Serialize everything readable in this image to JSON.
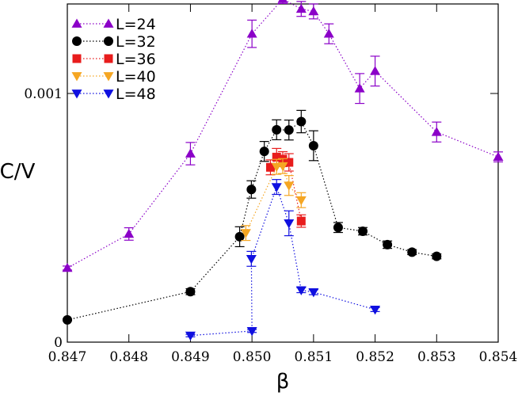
{
  "chart_data": {
    "type": "scatter",
    "title": "",
    "xlabel": "β",
    "ylabel": "C/V",
    "xlim": [
      0.847,
      0.854
    ],
    "ylim": [
      0,
      0.00136
    ],
    "x_ticks": [
      0.847,
      0.848,
      0.849,
      0.85,
      0.851,
      0.852,
      0.853,
      0.854
    ],
    "x_tick_labels": [
      "0.847",
      "0.848",
      "0.849",
      "0.850",
      "0.851",
      "0.852",
      "0.853",
      "0.854"
    ],
    "y_ticks": [
      0,
      0.001
    ],
    "y_tick_labels": [
      "0",
      "0.001"
    ],
    "legend_position": "top-left",
    "series": [
      {
        "name": "L=24",
        "color": "#8b00c8",
        "marker": "triangle-up",
        "x": [
          0.847,
          0.848,
          0.849,
          0.85,
          0.8505,
          0.8508,
          0.851,
          0.85125,
          0.85175,
          0.852,
          0.853,
          0.854
        ],
        "y": [
          0.000298,
          0.000435,
          0.000758,
          0.00124,
          0.00138,
          0.00134,
          0.00133,
          0.00124,
          0.00102,
          0.00109,
          0.000845,
          0.000745
        ],
        "err": [
          8e-06,
          2.5e-05,
          4.5e-05,
          5.5e-05,
          1.8e-05,
          3e-05,
          3e-05,
          4e-05,
          6e-05,
          6e-05,
          4e-05,
          2e-05
        ]
      },
      {
        "name": "L=32",
        "color": "#000000",
        "marker": "circle",
        "x": [
          0.847,
          0.849,
          0.8498,
          0.84999,
          0.8502,
          0.8504,
          0.8506,
          0.8508,
          0.851,
          0.8514,
          0.8518,
          0.8522,
          0.8526,
          0.853
        ],
        "y": [
          8.95e-05,
          0.000203,
          0.000424,
          0.000614,
          0.000767,
          0.000854,
          0.000853,
          0.000887,
          0.00079,
          0.000461,
          0.000446,
          0.000392,
          0.000362,
          0.000345
        ],
        "err": [
          3e-06,
          1.2e-05,
          4e-05,
          3.5e-05,
          4e-05,
          4e-05,
          4e-05,
          4.5e-05,
          6e-05,
          2e-05,
          1.5e-05,
          1.5e-05,
          1e-05,
          1e-05
        ]
      },
      {
        "name": "L=36",
        "color": "#e81c1c",
        "marker": "square",
        "x": [
          0.8503,
          0.8504,
          0.8505,
          0.8506,
          0.8508
        ],
        "y": [
          0.000703,
          0.000744,
          0.000736,
          0.000723,
          0.000487
        ],
        "err": [
          3e-05,
          3.5e-05,
          3e-05,
          3.5e-05,
          2.5e-05
        ]
      },
      {
        "name": "L=40",
        "color": "#f5a623",
        "marker": "triangle-down",
        "x": [
          0.8499,
          0.8504,
          0.8505,
          0.8506,
          0.8508
        ],
        "y": [
          0.000439,
          0.000705,
          0.000708,
          0.00063,
          0.000571
        ],
        "err": [
          3e-05,
          3e-05,
          3e-05,
          4e-05,
          3e-05
        ]
      },
      {
        "name": "L=48",
        "color": "#1010e0",
        "marker": "triangle-down",
        "x": [
          0.849,
          0.85,
          0.84999,
          0.8504,
          0.8506,
          0.8508,
          0.851,
          0.852
        ],
        "y": [
          2.65e-05,
          4.5e-05,
          0.000335,
          0.000624,
          0.000478,
          0.000209,
          0.000201,
          0.000131
        ],
        "err": [
          5e-06,
          6e-06,
          3e-05,
          3e-05,
          5e-05,
          1e-05,
          1e-05,
          8e-06
        ]
      }
    ]
  }
}
